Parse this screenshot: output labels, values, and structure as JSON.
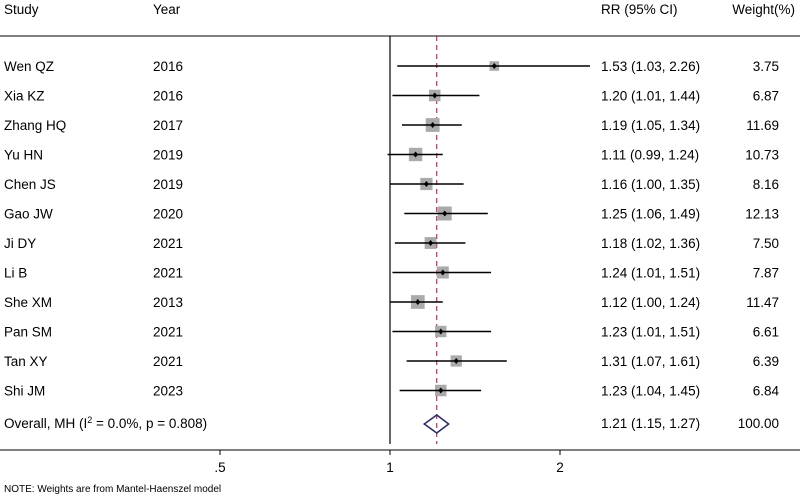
{
  "chart_data": {
    "type": "forest",
    "headers": {
      "study": "Study",
      "year": "Year",
      "effect": "RR (95% CI)",
      "weight": "Weight(%)"
    },
    "studies": [
      {
        "study": "Wen QZ",
        "year": "2016",
        "rr": 1.53,
        "lo": 1.03,
        "hi": 2.26,
        "effect_text": "1.53 (1.03, 2.26)",
        "weight": 3.75,
        "weight_text": "3.75"
      },
      {
        "study": "Xia KZ",
        "year": "2016",
        "rr": 1.2,
        "lo": 1.01,
        "hi": 1.44,
        "effect_text": "1.20 (1.01, 1.44)",
        "weight": 6.87,
        "weight_text": "6.87"
      },
      {
        "study": "Zhang HQ",
        "year": "2017",
        "rr": 1.19,
        "lo": 1.05,
        "hi": 1.34,
        "effect_text": "1.19 (1.05, 1.34)",
        "weight": 11.69,
        "weight_text": "11.69"
      },
      {
        "study": "Yu HN",
        "year": "2019",
        "rr": 1.11,
        "lo": 0.99,
        "hi": 1.24,
        "effect_text": "1.11 (0.99, 1.24)",
        "weight": 10.73,
        "weight_text": "10.73"
      },
      {
        "study": "Chen JS",
        "year": "2019",
        "rr": 1.16,
        "lo": 1.0,
        "hi": 1.35,
        "effect_text": "1.16 (1.00, 1.35)",
        "weight": 8.16,
        "weight_text": "8.16"
      },
      {
        "study": "Gao JW",
        "year": "2020",
        "rr": 1.25,
        "lo": 1.06,
        "hi": 1.49,
        "effect_text": "1.25 (1.06, 1.49)",
        "weight": 12.13,
        "weight_text": "12.13"
      },
      {
        "study": "Ji DY",
        "year": "2021",
        "rr": 1.18,
        "lo": 1.02,
        "hi": 1.36,
        "effect_text": "1.18 (1.02, 1.36)",
        "weight": 7.5,
        "weight_text": "7.50"
      },
      {
        "study": "Li B",
        "year": "2021",
        "rr": 1.24,
        "lo": 1.01,
        "hi": 1.51,
        "effect_text": "1.24 (1.01, 1.51)",
        "weight": 7.87,
        "weight_text": "7.87"
      },
      {
        "study": "She XM",
        "year": "2013",
        "rr": 1.12,
        "lo": 1.0,
        "hi": 1.24,
        "effect_text": "1.12 (1.00, 1.24)",
        "weight": 11.47,
        "weight_text": "11.47"
      },
      {
        "study": "Pan SM",
        "year": "2021",
        "rr": 1.23,
        "lo": 1.01,
        "hi": 1.51,
        "effect_text": "1.23 (1.01, 1.51)",
        "weight": 6.61,
        "weight_text": "6.61"
      },
      {
        "study": "Tan XY",
        "year": "2021",
        "rr": 1.31,
        "lo": 1.07,
        "hi": 1.61,
        "effect_text": "1.31 (1.07, 1.61)",
        "weight": 6.39,
        "weight_text": "6.39"
      },
      {
        "study": "Shi JM",
        "year": "2023",
        "rr": 1.23,
        "lo": 1.04,
        "hi": 1.45,
        "effect_text": "1.23 (1.04, 1.45)",
        "weight": 6.84,
        "weight_text": "6.84"
      }
    ],
    "overall": {
      "label_prefix": "Overall, MH (I",
      "label_sup": "2",
      "label_suffix": " = 0.0%, p = 0.808)",
      "rr": 1.21,
      "lo": 1.15,
      "hi": 1.27,
      "effect_text": "1.21 (1.15, 1.27)",
      "weight_text": "100.00"
    },
    "x_axis": {
      "scale": "log",
      "ticks": [
        0.5,
        1,
        2
      ],
      "tick_labels": [
        ".5",
        "1",
        "2"
      ],
      "null_value": 1
    },
    "note": "NOTE: Weights are from Mantel-Haenszel model",
    "colors": {
      "square": "#aaaaaa",
      "line": "#000000",
      "diamond": "#2d2f6e",
      "overall_line": "#8b1a3a"
    }
  }
}
